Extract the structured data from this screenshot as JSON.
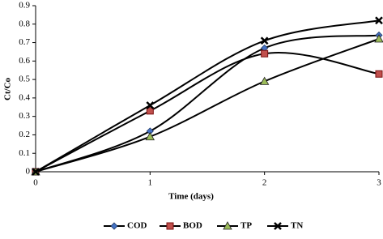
{
  "chart_data": {
    "type": "line",
    "x_label": "Time (days)",
    "y_label": "Ct/Co",
    "x": [
      0,
      1,
      2,
      3
    ],
    "series": [
      {
        "name": "COD",
        "color": "#4472c4",
        "marker": "diamond",
        "values": [
          0,
          0.22,
          0.67,
          0.74
        ]
      },
      {
        "name": "BOD",
        "color": "#c0504d",
        "marker": "square",
        "values": [
          0,
          0.33,
          0.64,
          0.53
        ]
      },
      {
        "name": "TP",
        "color": "#9bbb59",
        "marker": "triangle",
        "values": [
          0,
          0.19,
          0.49,
          0.72
        ]
      },
      {
        "name": "TN",
        "color": "#000000",
        "marker": "x",
        "values": [
          0,
          0.36,
          0.71,
          0.82
        ]
      }
    ],
    "xlim": [
      0,
      3
    ],
    "xticks": [
      0,
      1,
      2,
      3
    ],
    "ylim": [
      0,
      0.9
    ],
    "yticks": [
      0,
      0.1,
      0.2,
      0.3,
      0.4,
      0.5,
      0.6,
      0.7,
      0.8,
      0.9
    ],
    "grid": false,
    "legend": "bottom"
  }
}
